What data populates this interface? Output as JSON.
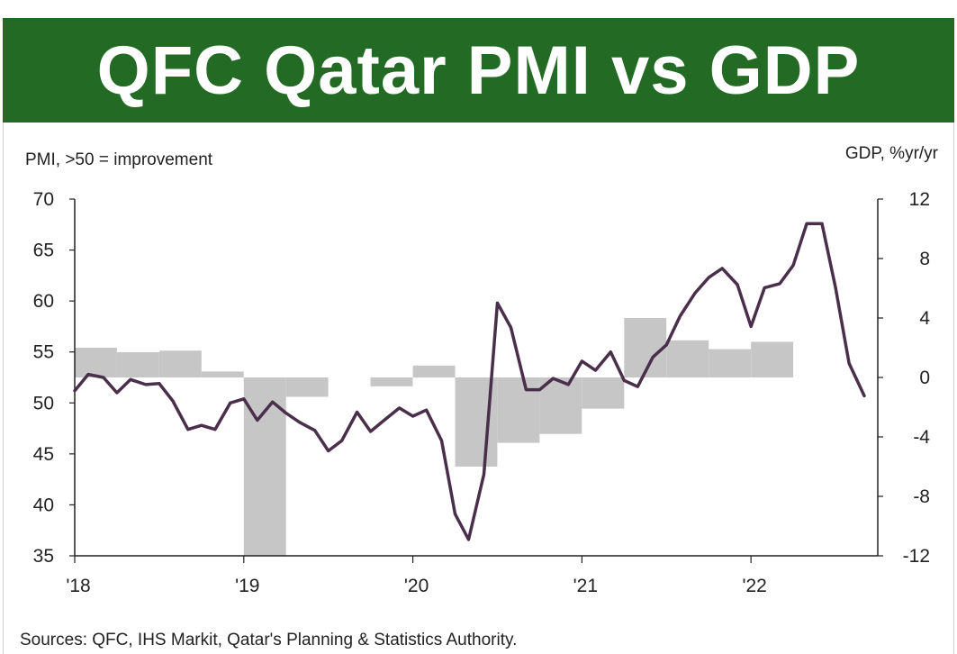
{
  "header": {
    "title": "QFC Qatar PMI vs GDP",
    "background_color": "#236b24",
    "text_color": "#ffffff"
  },
  "source_note": "Sources: QFC, IHS Markit, Qatar's Planning & Statistics Authority.",
  "chart_data": {
    "type": "bar+line",
    "left_axis": {
      "label": "PMI, >50 = improvement",
      "ylim": [
        35,
        70
      ],
      "ticks": [
        "70",
        "65",
        "60",
        "55",
        "50",
        "45",
        "40",
        "35"
      ]
    },
    "right_axis": {
      "label": "GDP, %yr/yr",
      "ylim": [
        -12,
        12
      ],
      "ticks": [
        "12",
        "8",
        "4",
        "0",
        "-4",
        "-8",
        "-12"
      ]
    },
    "x_axis": {
      "range": [
        2018.0,
        2022.75
      ],
      "tick_labels": [
        {
          "x": 2018,
          "label": "'18"
        },
        {
          "x": 2019,
          "label": "'19"
        },
        {
          "x": 2020,
          "label": "'20"
        },
        {
          "x": 2021,
          "label": "'21"
        },
        {
          "x": 2022,
          "label": "'22"
        }
      ]
    },
    "gdp_bars": {
      "axis": "right",
      "color": "#c6c6c6",
      "bars": [
        {
          "start": 2018.0,
          "end": 2018.25,
          "value": 2.0
        },
        {
          "start": 2018.25,
          "end": 2018.5,
          "value": 1.7
        },
        {
          "start": 2018.5,
          "end": 2018.75,
          "value": 1.8
        },
        {
          "start": 2018.75,
          "end": 2019.0,
          "value": 0.4
        },
        {
          "start": 2019.0,
          "end": 2019.25,
          "value": -12.0
        },
        {
          "start": 2019.25,
          "end": 2019.5,
          "value": -1.3
        },
        {
          "start": 2019.75,
          "end": 2020.0,
          "value": -0.6
        },
        {
          "start": 2020.0,
          "end": 2020.25,
          "value": 0.8
        },
        {
          "start": 2020.25,
          "end": 2020.5,
          "value": -6.0
        },
        {
          "start": 2020.5,
          "end": 2020.75,
          "value": -4.4
        },
        {
          "start": 2020.75,
          "end": 2021.0,
          "value": -3.8
        },
        {
          "start": 2021.0,
          "end": 2021.25,
          "value": -2.1
        },
        {
          "start": 2021.25,
          "end": 2021.5,
          "value": 4.0
        },
        {
          "start": 2021.5,
          "end": 2021.75,
          "value": 2.5
        },
        {
          "start": 2021.75,
          "end": 2022.0,
          "value": 1.9
        },
        {
          "start": 2022.0,
          "end": 2022.25,
          "value": 2.4
        }
      ]
    },
    "pmi_line": {
      "axis": "left",
      "color": "#4a2f4a",
      "points": [
        [
          2018.0,
          51.2
        ],
        [
          2018.08,
          52.8
        ],
        [
          2018.17,
          52.5
        ],
        [
          2018.25,
          51.0
        ],
        [
          2018.33,
          52.3
        ],
        [
          2018.42,
          51.8
        ],
        [
          2018.5,
          51.9
        ],
        [
          2018.58,
          50.2
        ],
        [
          2018.67,
          47.4
        ],
        [
          2018.75,
          47.8
        ],
        [
          2018.83,
          47.4
        ],
        [
          2018.92,
          50.0
        ],
        [
          2019.0,
          50.4
        ],
        [
          2019.08,
          48.3
        ],
        [
          2019.17,
          50.1
        ],
        [
          2019.25,
          49.0
        ],
        [
          2019.33,
          48.1
        ],
        [
          2019.42,
          47.3
        ],
        [
          2019.5,
          45.3
        ],
        [
          2019.58,
          46.3
        ],
        [
          2019.67,
          49.1
        ],
        [
          2019.75,
          47.2
        ],
        [
          2019.83,
          48.3
        ],
        [
          2019.92,
          49.5
        ],
        [
          2020.0,
          48.7
        ],
        [
          2020.08,
          49.3
        ],
        [
          2020.17,
          46.3
        ],
        [
          2020.25,
          39.1
        ],
        [
          2020.33,
          36.6
        ],
        [
          2020.42,
          43.0
        ],
        [
          2020.5,
          59.8
        ],
        [
          2020.58,
          57.4
        ],
        [
          2020.67,
          51.3
        ],
        [
          2020.75,
          51.3
        ],
        [
          2020.83,
          52.4
        ],
        [
          2020.92,
          51.8
        ],
        [
          2021.0,
          54.1
        ],
        [
          2021.08,
          53.2
        ],
        [
          2021.17,
          55.0
        ],
        [
          2021.25,
          52.2
        ],
        [
          2021.33,
          51.6
        ],
        [
          2021.42,
          54.5
        ],
        [
          2021.5,
          55.7
        ],
        [
          2021.58,
          58.5
        ],
        [
          2021.67,
          60.8
        ],
        [
          2021.75,
          62.3
        ],
        [
          2021.83,
          63.2
        ],
        [
          2021.92,
          61.6
        ],
        [
          2022.0,
          57.5
        ],
        [
          2022.08,
          61.3
        ],
        [
          2022.17,
          61.7
        ],
        [
          2022.25,
          63.5
        ],
        [
          2022.33,
          67.6
        ],
        [
          2022.42,
          67.6
        ],
        [
          2022.5,
          61.3
        ],
        [
          2022.58,
          53.9
        ],
        [
          2022.67,
          50.7
        ]
      ]
    },
    "grid": false,
    "legend": "none"
  }
}
